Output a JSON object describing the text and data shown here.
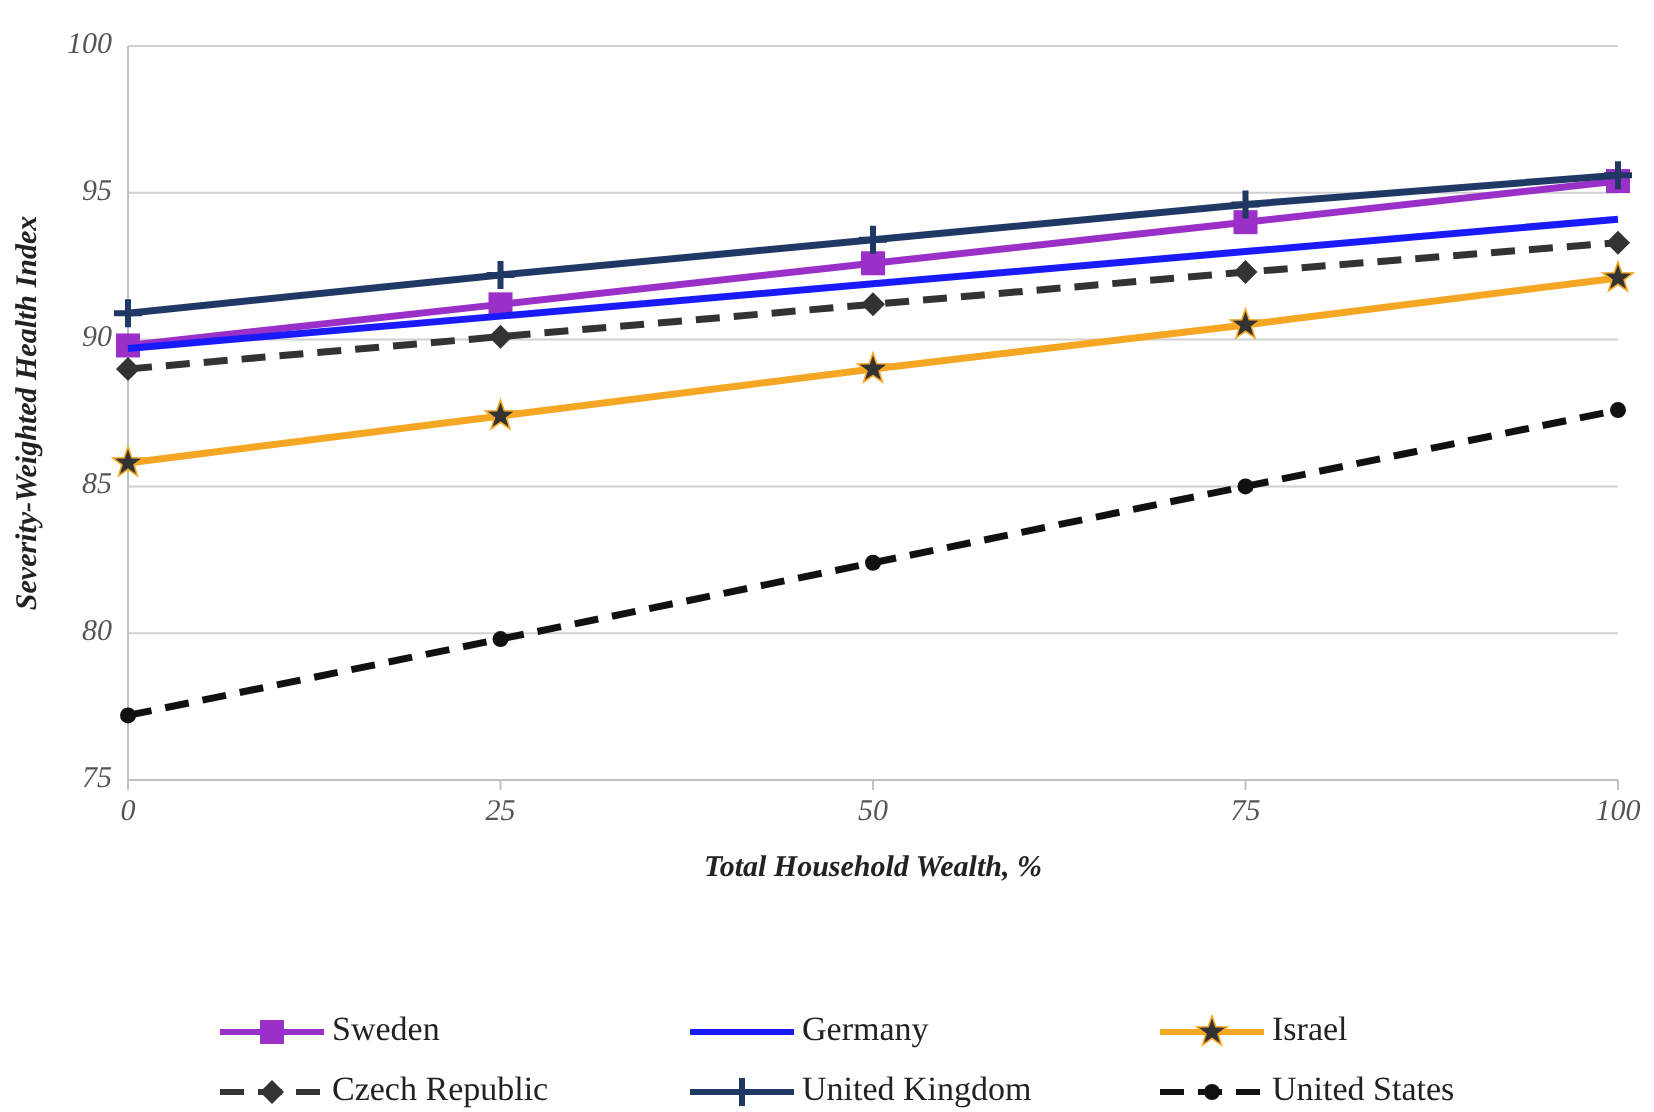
{
  "chart_data": {
    "type": "line",
    "xlabel": "Total Household Wealth, %",
    "ylabel": "Severity-Weighted Health Index",
    "x": [
      0,
      25,
      50,
      75,
      100
    ],
    "xlim": [
      0,
      100
    ],
    "xticks": [
      0,
      25,
      50,
      75,
      100
    ],
    "ylim": [
      75,
      100
    ],
    "yticks": [
      75,
      80,
      85,
      90,
      95,
      100
    ],
    "grid": "y",
    "legend": "bottom",
    "series": [
      {
        "name": "Sweden",
        "color": "#9b30c8",
        "marker": "square",
        "line_style": "solid",
        "values": [
          89.8,
          91.2,
          92.6,
          94.0,
          95.4
        ]
      },
      {
        "name": "Germany",
        "color": "#1a1aff",
        "marker": "none",
        "line_style": "solid",
        "values": [
          89.7,
          90.8,
          91.9,
          93.0,
          94.1
        ]
      },
      {
        "name": "Israel",
        "color": "#f5a623",
        "marker": "star",
        "line_style": "solid",
        "values": [
          85.8,
          87.4,
          89.0,
          90.5,
          92.1
        ]
      },
      {
        "name": "Czech Republic",
        "color": "#333333",
        "marker": "diamond",
        "line_style": "dashed",
        "values": [
          89.0,
          90.1,
          91.2,
          92.3,
          93.3
        ]
      },
      {
        "name": "United Kingdom",
        "color": "#1f3864",
        "marker": "cross",
        "line_style": "solid",
        "values": [
          90.9,
          92.2,
          93.4,
          94.6,
          95.6
        ]
      },
      {
        "name": "United States",
        "color": "#111111",
        "marker": "circle",
        "line_style": "dashed",
        "values": [
          77.2,
          79.8,
          82.4,
          85.0,
          87.6
        ]
      }
    ]
  }
}
